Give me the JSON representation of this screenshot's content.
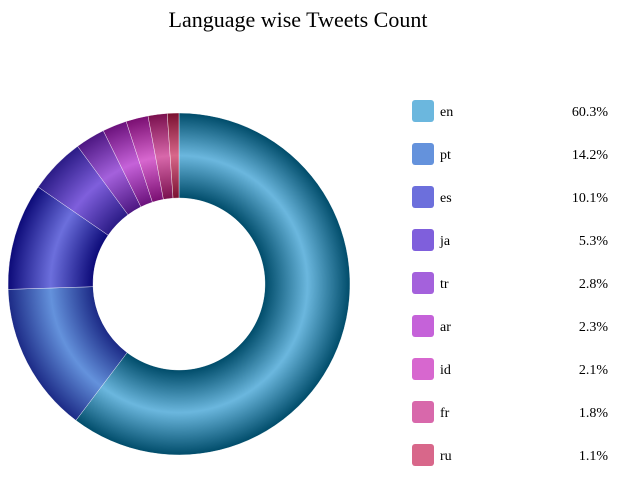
{
  "chart_data": {
    "type": "pie",
    "title": "Language wise Tweets Count",
    "donut": true,
    "legend_position": "right",
    "categories": [
      "en",
      "pt",
      "es",
      "ja",
      "tr",
      "ar",
      "id",
      "fr",
      "ru"
    ],
    "values": [
      60.3,
      14.2,
      10.1,
      5.3,
      2.8,
      2.3,
      2.1,
      1.8,
      1.1
    ],
    "value_labels": [
      "60.3%",
      "14.2%",
      "10.1%",
      "5.3%",
      "2.8%",
      "2.3%",
      "2.1%",
      "1.8%",
      "1.1%"
    ],
    "colors": [
      "#6bb7de",
      "#6492dc",
      "#6c6fdc",
      "#7f5fdc",
      "#a461dc",
      "#c562d9",
      "#d767cf",
      "#d868ab",
      "#d8678a"
    ],
    "dark_colors": [
      "#004c6a",
      "#1c2a86",
      "#0c0a78",
      "#2b1b86",
      "#4d1782",
      "#6b127c",
      "#7a0f72",
      "#7a104e",
      "#7a1030"
    ]
  }
}
